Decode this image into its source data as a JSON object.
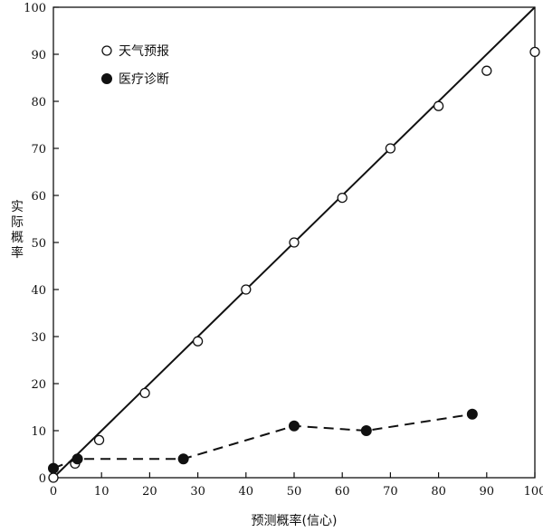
{
  "chart_data": {
    "type": "scatter",
    "title": "",
    "xlabel": "预测概率(信心)",
    "ylabel": "实际概率",
    "xlim": [
      0,
      100
    ],
    "ylim": [
      0,
      100
    ],
    "xticks": [
      0,
      10,
      20,
      30,
      40,
      50,
      60,
      70,
      80,
      90,
      100
    ],
    "yticks": [
      0,
      10,
      20,
      30,
      40,
      50,
      60,
      70,
      80,
      90,
      100
    ],
    "grid": false,
    "legend_position": "top-left",
    "reference_line": {
      "from": [
        0,
        0
      ],
      "to": [
        100,
        100
      ],
      "style": "solid"
    },
    "series": [
      {
        "name": "天气预报",
        "marker": "open-circle",
        "line": "none",
        "color": "#111111",
        "x": [
          0,
          4.5,
          9.5,
          19,
          30,
          40,
          50,
          60,
          70,
          80,
          90,
          100
        ],
        "y": [
          0,
          3,
          8,
          18,
          29,
          40,
          50,
          59.5,
          70,
          79,
          86.5,
          90.5
        ]
      },
      {
        "name": "医疗诊断",
        "marker": "filled-circle",
        "line": "dashed",
        "color": "#111111",
        "x": [
          0,
          5,
          27,
          50,
          65,
          87
        ],
        "y": [
          2,
          4,
          4,
          11,
          10,
          13.5
        ]
      }
    ]
  }
}
